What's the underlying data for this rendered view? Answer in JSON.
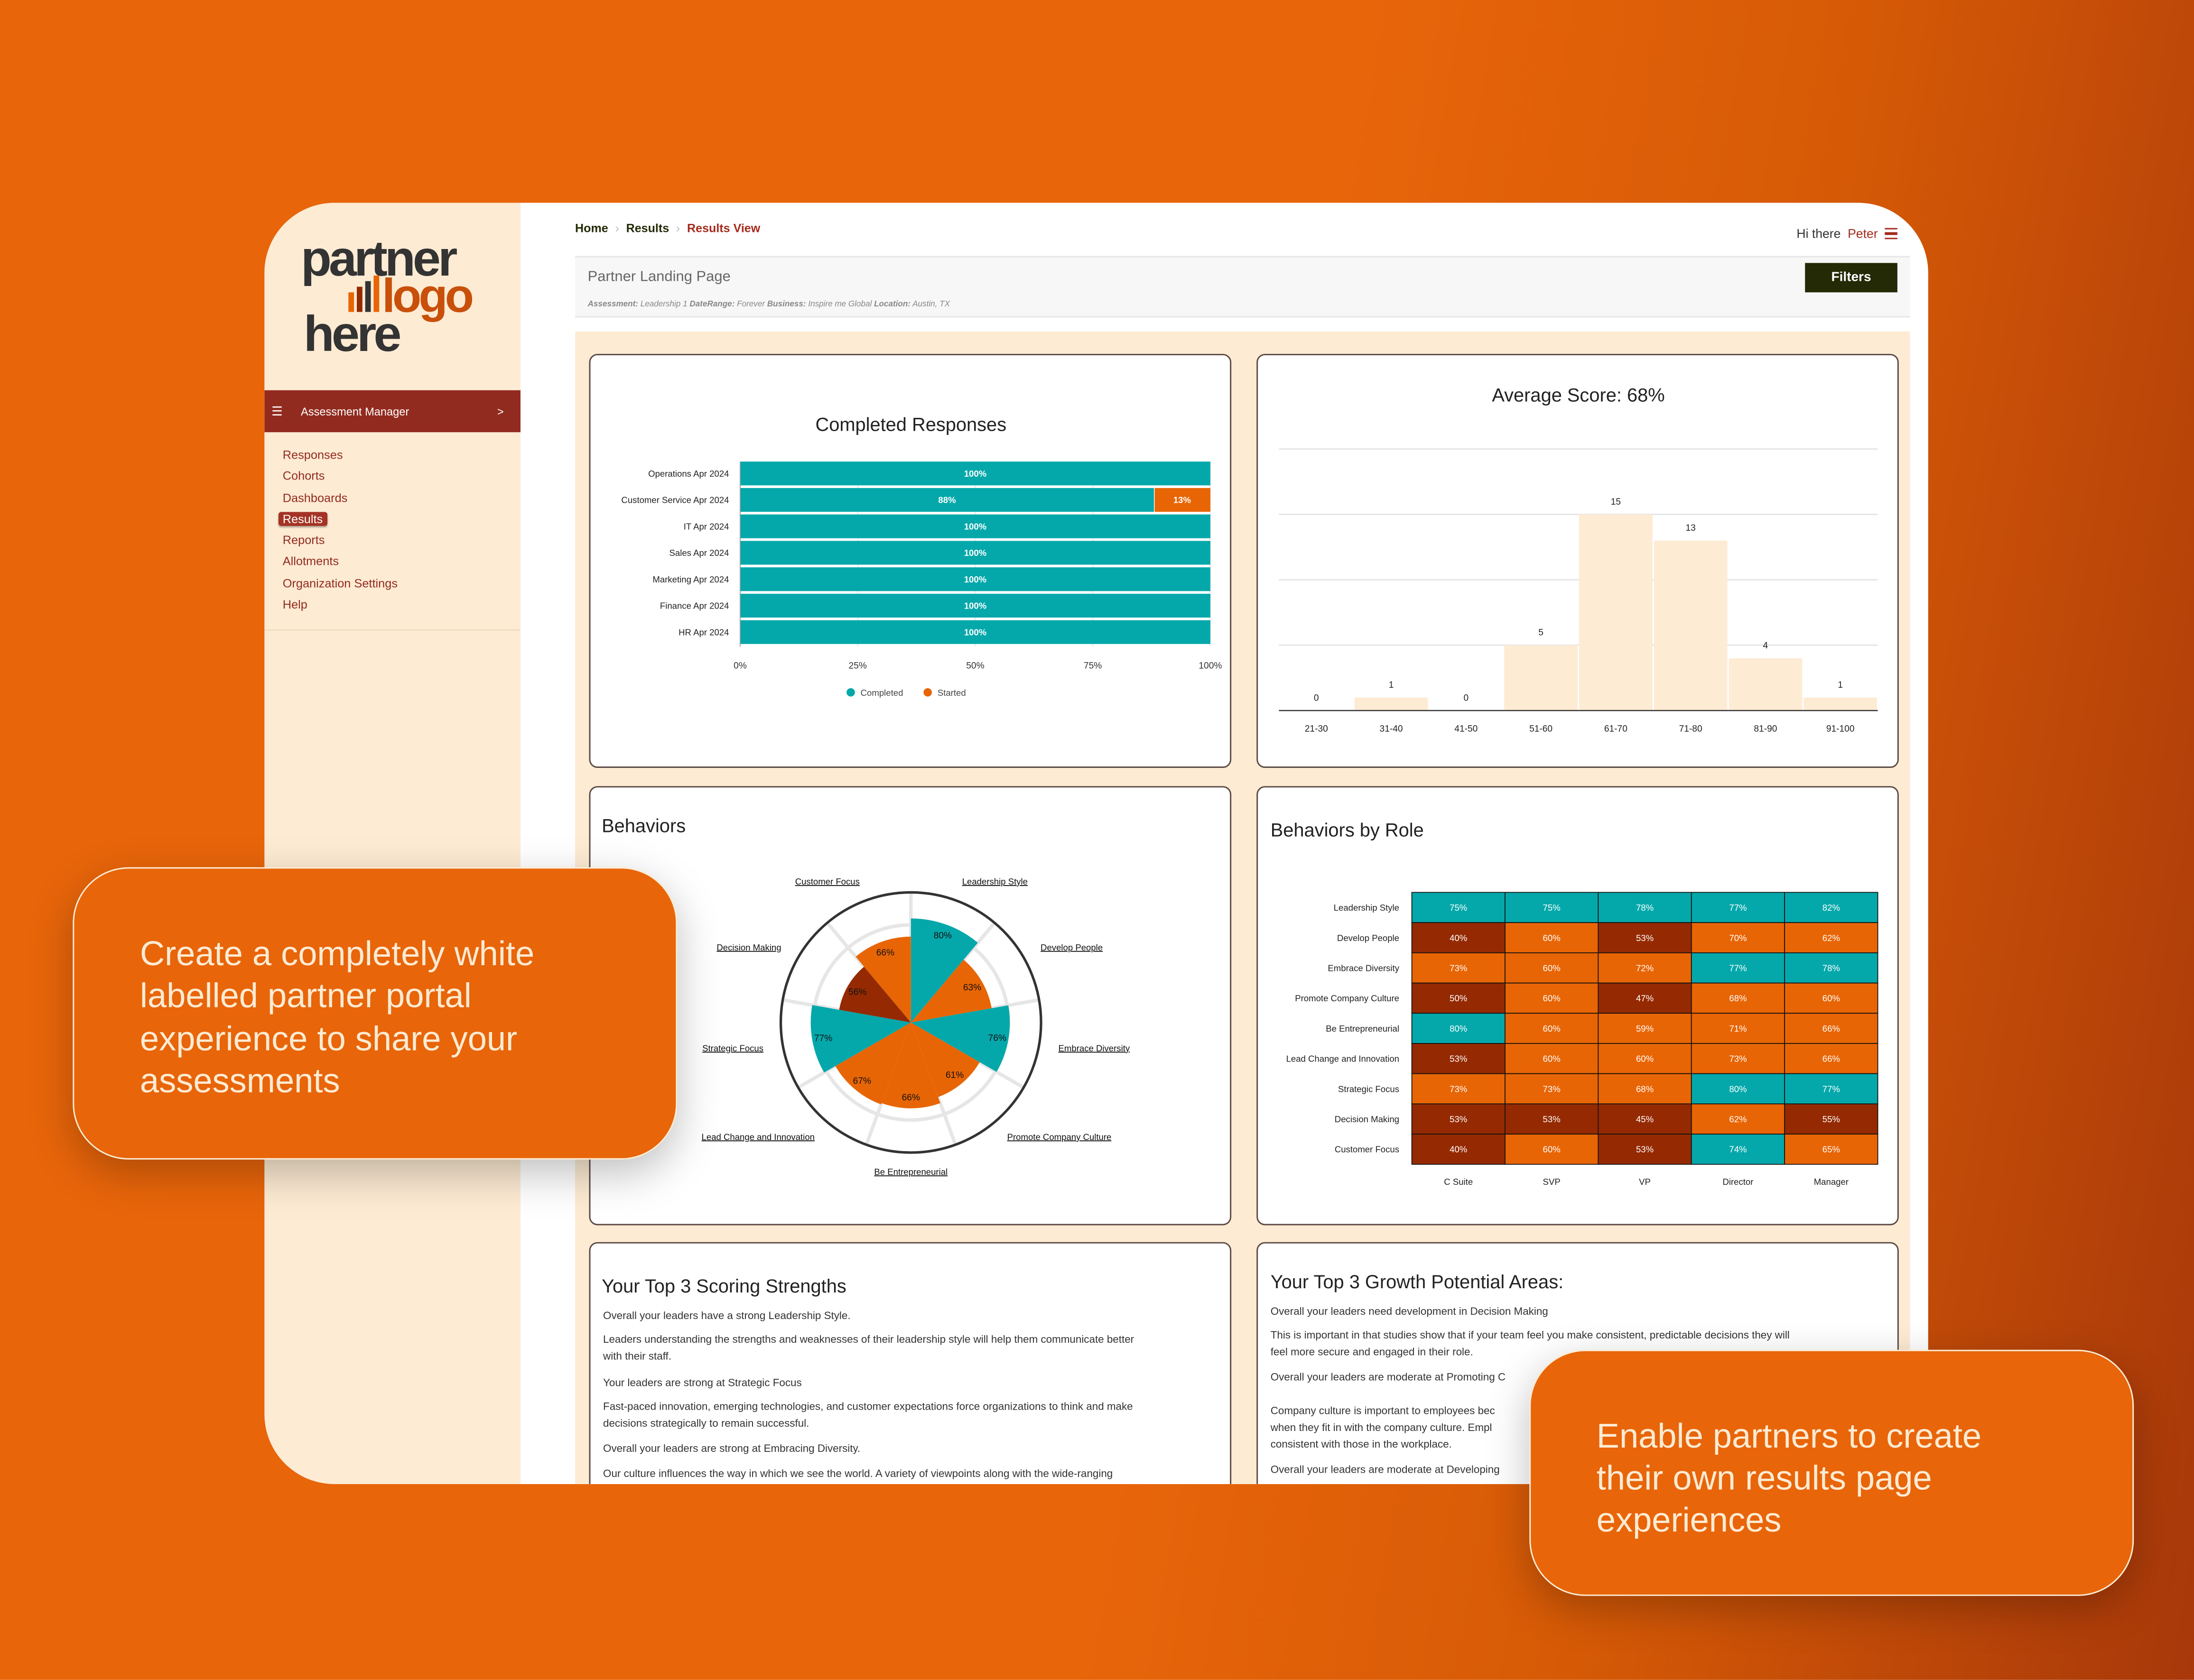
{
  "colors": {
    "teal": "#05a8aa",
    "orange": "#e86505",
    "dark_red": "#952a02",
    "sidebar_bg": "#fdebd3",
    "brand_red": "#922b1f",
    "filters_bg": "#232a05"
  },
  "logo": {
    "line1": "partner",
    "line2": "logo",
    "line3": "here"
  },
  "sidebar": {
    "section_icon": "list-icon",
    "section_label": "Assessment Manager",
    "section_chevron": ">",
    "items": [
      {
        "label": "Responses"
      },
      {
        "label": "Cohorts"
      },
      {
        "label": "Dashboards"
      },
      {
        "label": "Results",
        "active": true
      },
      {
        "label": "Reports"
      },
      {
        "label": "Allotments"
      },
      {
        "label": "Organization Settings"
      },
      {
        "label": "Help"
      }
    ]
  },
  "breadcrumb": {
    "items": [
      "Home",
      "Results",
      "Results View"
    ],
    "separator": "›"
  },
  "user": {
    "greeting": "Hi there",
    "name": "Peter",
    "menu_icon": "hamburger-icon"
  },
  "header": {
    "title": "Partner Landing Page",
    "filters_label": "Filters",
    "meta": [
      {
        "k": "Assessment:",
        "v": " Leadership 1 "
      },
      {
        "k": "DateRange:",
        "v": " Forever "
      },
      {
        "k": "Business:",
        "v": " Inspire me Global "
      },
      {
        "k": "Location:",
        "v": " Austin, TX"
      }
    ]
  },
  "chart_data": [
    {
      "type": "bar",
      "orientation": "horizontal",
      "stacked": true,
      "title": "Completed Responses",
      "categories": [
        "Operations Apr 2024",
        "Customer Service Apr 2024",
        "IT Apr 2024",
        "Sales Apr 2024",
        "Marketing Apr 2024",
        "Finance Apr 2024",
        "HR Apr 2024"
      ],
      "series": [
        {
          "name": "Completed",
          "values": [
            100,
            88,
            100,
            100,
            100,
            100,
            100
          ]
        },
        {
          "name": "Started",
          "values": [
            0,
            13,
            0,
            0,
            0,
            0,
            0
          ]
        }
      ],
      "xticks": [
        "0%",
        "25%",
        "50%",
        "75%",
        "100%"
      ],
      "xlim": [
        0,
        100
      ],
      "legend": "bottom"
    },
    {
      "type": "bar",
      "title": "Average Score: 68%",
      "categories": [
        "21-30",
        "31-40",
        "41-50",
        "51-60",
        "61-70",
        "71-80",
        "81-90",
        "91-100"
      ],
      "values": [
        0,
        1,
        0,
        5,
        15,
        13,
        4,
        1
      ],
      "ylim": [
        0,
        20
      ],
      "grid": true
    },
    {
      "type": "polar-area",
      "title": "Behaviors",
      "categories": [
        "Leadership Style",
        "Develop People",
        "Embrace Diversity",
        "Promote Company Culture",
        "Be Entrepreneurial",
        "Lead Change and Innovation",
        "Strategic Focus",
        "Decision Making",
        "Customer Focus"
      ],
      "values": [
        80,
        63,
        76,
        61,
        66,
        67,
        77,
        56,
        66
      ],
      "rlim": [
        0,
        100
      ]
    },
    {
      "type": "heatmap",
      "title": "Behaviors by Role",
      "rows": [
        "Leadership Style",
        "Develop People",
        "Embrace Diversity",
        "Promote Company Culture",
        "Be Entrepreneurial",
        "Lead Change and Innovation",
        "Strategic Focus",
        "Decision Making",
        "Customer Focus"
      ],
      "columns": [
        "C Suite",
        "SVP",
        "VP",
        "Director",
        "Manager"
      ],
      "values": [
        [
          75,
          75,
          78,
          77,
          82
        ],
        [
          40,
          60,
          53,
          70,
          62
        ],
        [
          73,
          60,
          72,
          77,
          78
        ],
        [
          50,
          60,
          47,
          68,
          60
        ],
        [
          80,
          60,
          59,
          71,
          66
        ],
        [
          53,
          60,
          60,
          73,
          66
        ],
        [
          73,
          73,
          68,
          80,
          77
        ],
        [
          53,
          53,
          45,
          62,
          55
        ],
        [
          40,
          60,
          53,
          74,
          65
        ]
      ]
    }
  ],
  "strengths": {
    "title": "Your Top 3 Scoring Strengths",
    "lines": [
      "Overall your leaders have a strong Leadership Style.",
      "Leaders understanding the strengths and weaknesses of their leadership style will help them communicate better",
      "with their staff.",
      "Your leaders are strong at Strategic Focus",
      "Fast-paced innovation, emerging technologies, and customer expectations force organizations to think and make",
      "decisions strategically to remain successful.",
      "Overall your leaders are strong at Embracing Diversity.",
      "Our culture influences the way in which we see the world. A variety of viewpoints along with the wide-ranging"
    ]
  },
  "growth": {
    "title": "Your Top 3 Growth Potential Areas:",
    "lines": [
      "Overall your leaders need development in Decision Making",
      "This is important in that studies show that if your team feel you make consistent, predictable decisions they will",
      "feel more secure and engaged in their role.",
      "Overall your leaders are moderate at Promoting C",
      "Company culture is important to employees bec",
      "when they fit in with the company culture. Empl",
      "consistent with those in the workplace.",
      "Overall your leaders are moderate at Developing"
    ]
  },
  "callouts": {
    "left": [
      "Create a completely white",
      "labelled partner portal",
      "experience to share your",
      "assessments"
    ],
    "right": [
      "Enable partners to create",
      "their own results page",
      "experiences"
    ]
  }
}
